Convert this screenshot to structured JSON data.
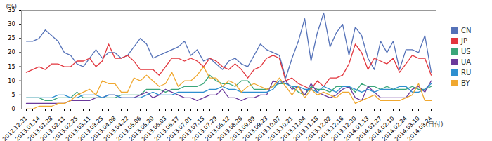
{
  "chart_data": {
    "type": "line",
    "y_label": "(%)",
    "x_label": "(日付)",
    "categories": [
      "2012.12.31",
      null,
      "2013.01.14",
      null,
      "2013.01.28",
      null,
      "2013.02.11",
      null,
      "2013.02.25",
      null,
      "2013.03.11",
      null,
      "2013.03.25",
      null,
      "2013.04.08",
      null,
      "2013.04.22",
      null,
      "2013.05.06",
      null,
      "2013.05.20",
      null,
      "2013.06.03",
      null,
      "2013.06.17",
      null,
      "2013.07.01",
      null,
      "2013.07.15",
      null,
      "2013.07.29",
      null,
      "2013.08.12",
      null,
      "2013.08.26",
      null,
      "2013.09.09",
      null,
      "2013.09.23",
      null,
      "2013.10.07",
      null,
      "2013.10.21",
      null,
      "2013.11.04",
      null,
      "2013.11.18",
      null,
      "2013.12.02",
      null,
      "2013.12.16",
      null,
      "2013.12.30",
      null,
      "2014.01.13",
      null,
      "2014.01.27",
      null,
      "2014.02.10",
      null,
      "2014.02.24",
      null,
      "2014.03.10",
      null,
      "2014.03.24"
    ],
    "series": [
      {
        "name": "CN",
        "color": "#5572b8",
        "values": [
          24,
          24,
          25,
          28,
          26,
          24,
          20,
          19,
          16,
          15,
          18,
          21,
          18,
          20,
          20,
          18,
          19,
          22,
          25,
          23,
          18,
          19,
          20,
          21,
          22,
          24,
          19,
          21,
          17,
          18,
          16,
          14,
          17,
          18,
          16,
          15,
          19,
          23,
          21,
          20,
          19,
          11,
          18,
          24,
          32,
          17,
          27,
          34,
          22,
          27,
          30,
          19,
          29,
          26,
          18,
          14,
          24,
          20,
          24,
          14,
          21,
          21,
          20,
          26,
          13
        ]
      },
      {
        "name": "JP",
        "color": "#e2363e",
        "values": [
          13,
          14,
          15,
          14,
          16,
          16,
          15,
          15,
          17,
          17,
          18,
          15,
          17,
          23,
          18,
          18,
          19,
          17,
          14,
          14,
          14,
          12,
          15,
          18,
          18,
          17,
          18,
          17,
          15,
          18,
          17,
          15,
          14,
          16,
          14,
          11,
          14,
          15,
          18,
          19,
          18,
          10,
          11,
          9,
          8,
          7,
          10,
          8,
          11,
          11,
          12,
          16,
          23,
          20,
          14,
          18,
          17,
          16,
          18,
          13,
          16,
          19,
          18,
          18,
          12
        ]
      },
      {
        "name": "US",
        "color": "#3aa67a",
        "values": [
          4,
          4,
          4,
          3,
          3,
          4,
          4,
          4,
          6,
          4,
          4,
          4,
          4,
          4,
          4,
          5,
          5,
          5,
          5,
          7,
          7,
          7,
          6,
          7,
          7,
          8,
          8,
          8,
          9,
          12,
          10,
          9,
          9,
          8,
          10,
          10,
          7,
          7,
          7,
          8,
          9,
          9,
          8,
          6,
          5,
          8,
          7,
          7,
          6,
          8,
          8,
          8,
          6,
          9,
          8,
          8,
          7,
          8,
          7,
          7,
          7,
          8,
          7,
          7,
          8
        ]
      },
      {
        "name": "UA",
        "color": "#6b3a9c",
        "values": [
          2,
          2,
          2,
          2,
          2,
          2,
          2,
          3,
          3,
          3,
          3,
          4,
          4,
          5,
          5,
          4,
          4,
          4,
          5,
          6,
          4,
          5,
          7,
          6,
          5,
          4,
          4,
          3,
          4,
          5,
          5,
          7,
          4,
          4,
          3,
          4,
          4,
          5,
          5,
          10,
          9,
          10,
          7,
          8,
          5,
          9,
          6,
          5,
          4,
          5,
          7,
          8,
          4,
          3,
          8,
          6,
          4,
          4,
          4,
          4,
          4,
          7,
          8,
          6,
          10
        ]
      },
      {
        "name": "RU",
        "color": "#2e8fd0",
        "values": [
          4,
          4,
          4,
          4,
          4,
          5,
          5,
          4,
          4,
          5,
          5,
          5,
          4,
          5,
          5,
          4,
          4,
          4,
          4,
          5,
          6,
          5,
          5,
          5,
          6,
          6,
          6,
          6,
          6,
          7,
          7,
          8,
          7,
          7,
          6,
          6,
          6,
          6,
          6,
          7,
          10,
          9,
          8,
          8,
          7,
          7,
          6,
          8,
          7,
          6,
          8,
          8,
          7,
          6,
          7,
          6,
          7,
          7,
          7,
          8,
          8,
          6,
          6,
          7,
          9
        ]
      },
      {
        "name": "BY",
        "color": "#f0a830",
        "values": [
          0,
          0,
          1,
          1,
          1,
          2,
          2,
          3,
          5,
          6,
          7,
          5,
          10,
          9,
          9,
          6,
          6,
          11,
          10,
          12,
          10,
          8,
          9,
          13,
          8,
          10,
          10,
          12,
          15,
          11,
          11,
          8,
          10,
          9,
          6,
          8,
          9,
          8,
          7,
          8,
          11,
          8,
          5,
          8,
          4,
          7,
          5,
          6,
          5,
          4,
          6,
          6,
          2,
          3,
          4,
          5,
          3,
          3,
          3,
          3,
          4,
          5,
          9,
          3,
          3
        ]
      }
    ],
    "ylim": [
      0,
      35
    ],
    "yticks": [
      0,
      5,
      10,
      15,
      20,
      25,
      30,
      35
    ],
    "grid": false,
    "legend": "right"
  }
}
